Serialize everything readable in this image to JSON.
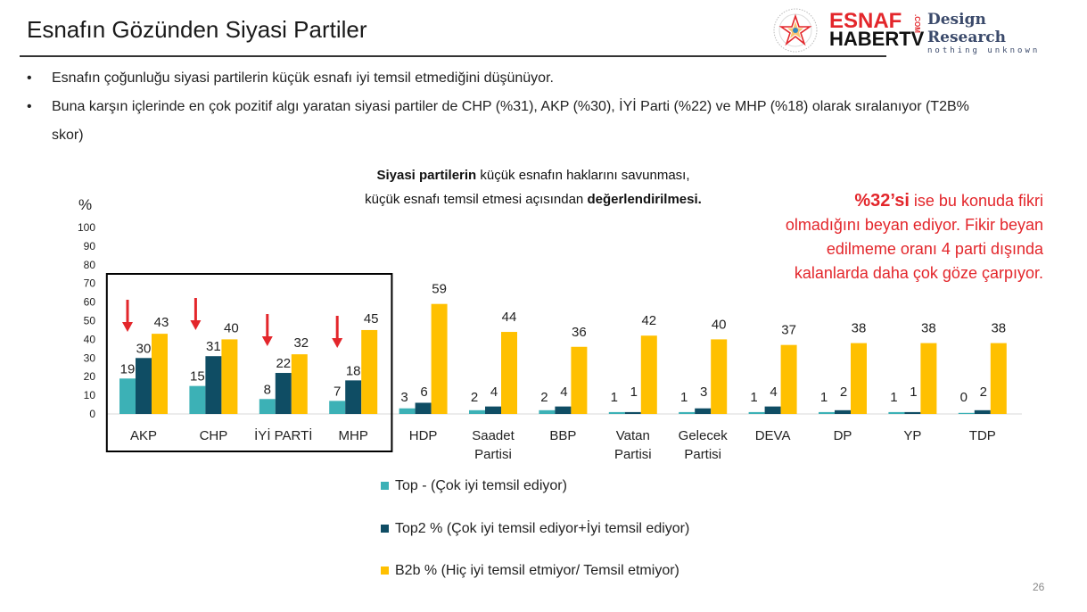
{
  "title": "Esnafın Gözünden Siyasi Partiler",
  "logos": {
    "esnaf_line1": "ESNAF",
    "esnaf_line2": "HABERTV",
    "esnaf_com": ".COM",
    "dr_line1": "Design Research",
    "dr_line2": "nothing unknown"
  },
  "bullets": [
    "Esnafın çoğunluğu siyasi partilerin küçük esnafı iyi temsil etmediğini düşünüyor.",
    "Buna karşın içlerinde en çok pozitif algı yaratan siyasi partiler de CHP (%31), AKP (%30), İYİ Parti (%22) ve MHP (%18) olarak sıralanıyor (T2B% skor)"
  ],
  "callout": {
    "highlight": "%32’si",
    "text": " ise bu konuda fikri olmadığını beyan ediyor. Fikir beyan edilmeme oranı 4 parti dışında kalanlarda daha çok göze çarpıyor."
  },
  "page_number": "26",
  "colors": {
    "top": "#3cb1b6",
    "top2": "#0f4d64",
    "b2b": "#ffc000",
    "arrow": "#e3262b",
    "highlight_box": "#000000"
  },
  "chart_data": {
    "type": "bar",
    "title_bold": "Siyasi partilerin",
    "title_rest": " küçük esnafın haklarını savunması,",
    "title_line2_pre": "küçük esnafı temsil etmesi açısından ",
    "title_line2_bold": "değerlendirilmesi.",
    "ylabel": "%",
    "ylim": [
      0,
      100
    ],
    "yticks": [
      0,
      10,
      20,
      30,
      40,
      50,
      60,
      70,
      80,
      90,
      100
    ],
    "categories": [
      [
        "AKP"
      ],
      [
        "CHP"
      ],
      [
        "İYİ PARTİ"
      ],
      [
        "MHP"
      ],
      [
        "HDP"
      ],
      [
        "Saadet",
        "Partisi"
      ],
      [
        "BBP"
      ],
      [
        "Vatan",
        "Partisi"
      ],
      [
        "Gelecek",
        "Partisi"
      ],
      [
        "DEVA"
      ],
      [
        "DP"
      ],
      [
        "YP"
      ],
      [
        "TDP"
      ]
    ],
    "series": [
      {
        "name": "Top - (Çok iyi temsil ediyor)",
        "values": [
          19,
          15,
          8,
          7,
          3,
          2,
          2,
          1,
          1,
          1,
          1,
          1,
          0
        ]
      },
      {
        "name": "Top2 % (Çok iyi temsil ediyor+İyi temsil ediyor)",
        "values": [
          30,
          31,
          22,
          18,
          6,
          4,
          4,
          1,
          3,
          4,
          2,
          1,
          2
        ]
      },
      {
        "name": "B2b % (Hiç iyi temsil etmiyor/ Temsil etmiyor)",
        "values": [
          43,
          40,
          32,
          45,
          59,
          44,
          36,
          42,
          40,
          37,
          38,
          38,
          38
        ]
      }
    ],
    "arrows_on": [
      "AKP",
      "CHP",
      "İYİ PARTİ",
      "MHP"
    ],
    "highlighted_categories": [
      "AKP",
      "CHP",
      "İYİ PARTİ",
      "MHP"
    ],
    "legend_position": "bottom",
    "grid": false
  }
}
